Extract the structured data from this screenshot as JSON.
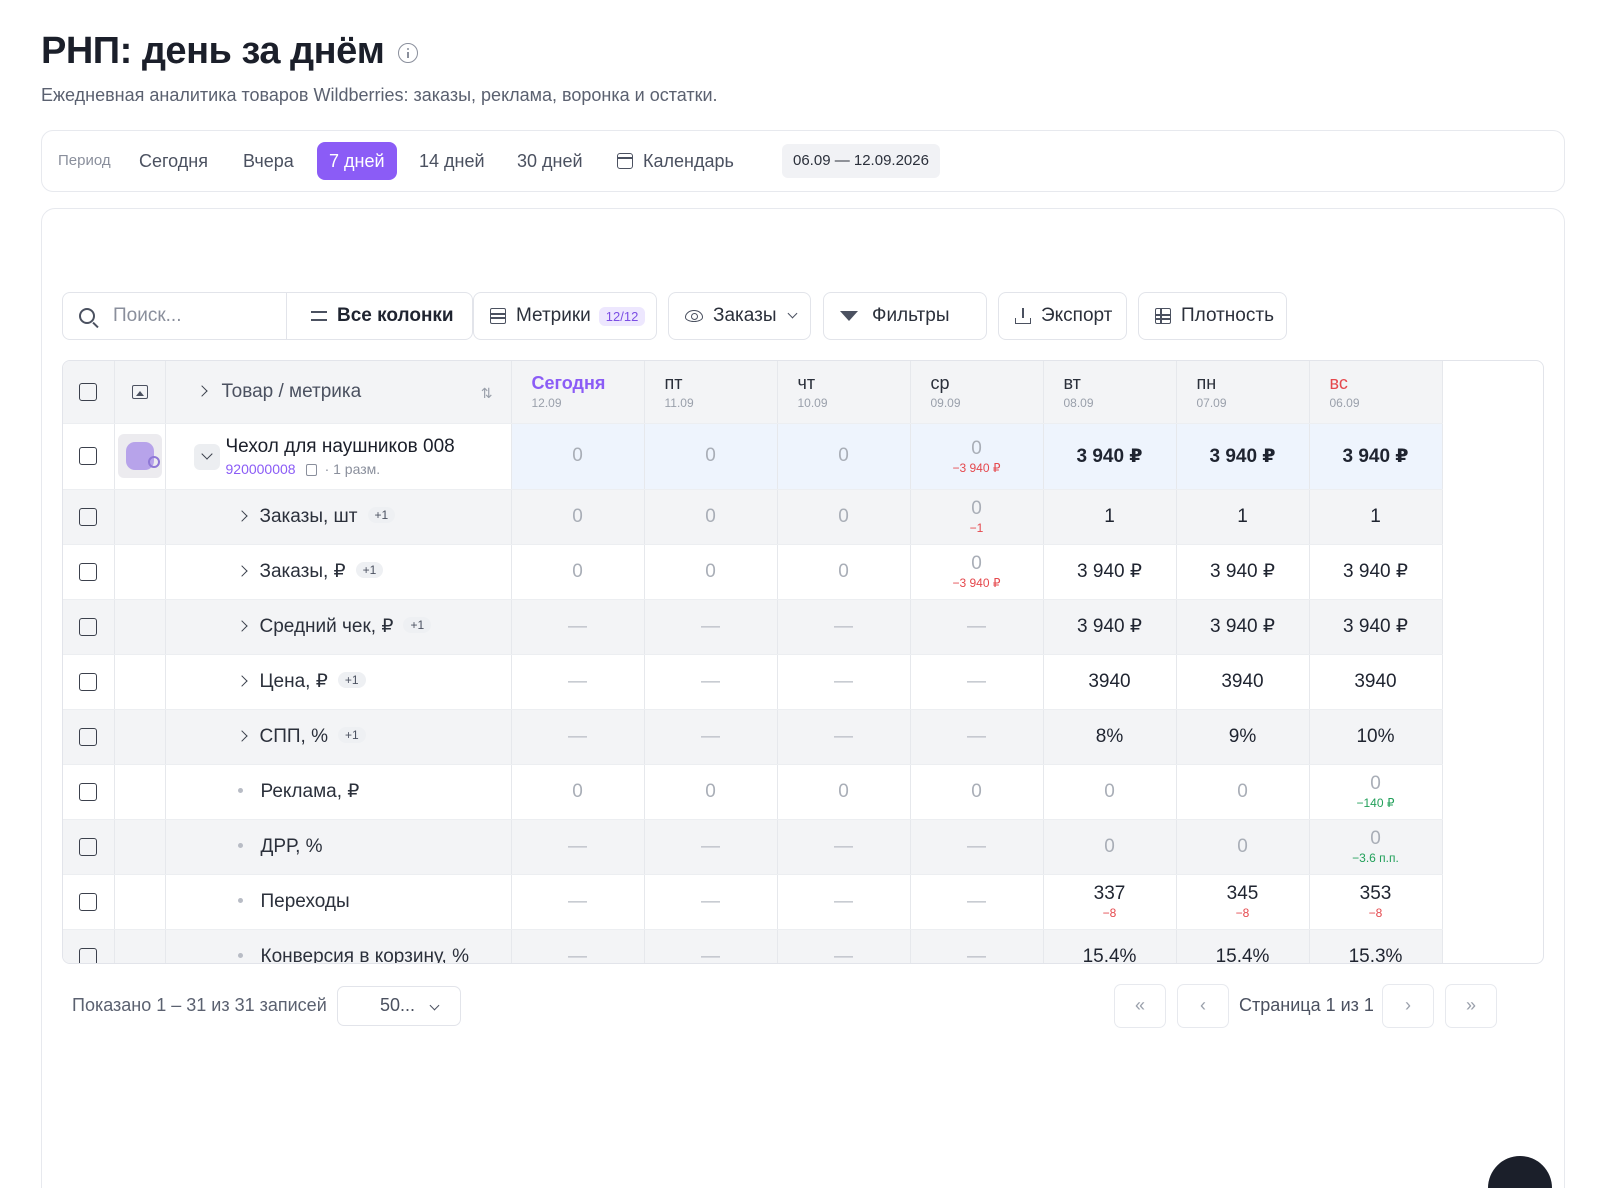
{
  "header": {
    "title": "РНП: день за днём",
    "subtitle": "Ежедневная аналитика товаров Wildberries: заказы, реклама, воронка и остатки."
  },
  "period": {
    "label": "Период",
    "options": [
      "Сегодня",
      "Вчера",
      "7 дней",
      "14 дней",
      "30 дней"
    ],
    "active": "7 дней",
    "calendar": "Календарь",
    "range": "06.09 — 12.09.2026"
  },
  "toolbar": {
    "search_placeholder": "Поиск...",
    "all_columns": "Все колонки",
    "metrics": "Метрики",
    "metrics_badge": "12/12",
    "orders": "Заказы",
    "filters": "Фильтры",
    "export": "Экспорт",
    "density": "Плотность"
  },
  "table": {
    "name_header": "Товар / метрика",
    "days": [
      {
        "day": "Сегодня",
        "date": "12.09"
      },
      {
        "day": "пт",
        "date": "11.09"
      },
      {
        "day": "чт",
        "date": "10.09"
      },
      {
        "day": "ср",
        "date": "09.09"
      },
      {
        "day": "вт",
        "date": "08.09"
      },
      {
        "day": "пн",
        "date": "07.09"
      },
      {
        "day": "вс",
        "date": "06.09"
      }
    ],
    "product": {
      "name": "Чехол для наушников 008",
      "sku": "920000008",
      "sizes": "· 1 разм.",
      "values": [
        "0",
        "0",
        "0",
        "0",
        "3 940 ₽",
        "3 940 ₽",
        "3 940 ₽"
      ],
      "deltas": [
        "",
        "",
        "",
        "−3 940 ₽",
        "",
        "",
        ""
      ]
    },
    "rows": [
      {
        "label": "Заказы, шт",
        "plus": "+1",
        "values": [
          "0",
          "0",
          "0",
          "0",
          "1",
          "1",
          "1"
        ],
        "deltas": [
          "",
          "",
          "",
          "−1",
          "",
          "",
          ""
        ]
      },
      {
        "label": "Заказы, ₽",
        "plus": "+1",
        "values": [
          "0",
          "0",
          "0",
          "0",
          "3 940 ₽",
          "3 940 ₽",
          "3 940 ₽"
        ],
        "deltas": [
          "",
          "",
          "",
          "−3 940 ₽",
          "",
          "",
          ""
        ]
      },
      {
        "label": "Средний чек, ₽",
        "plus": "+1",
        "values": [
          "—",
          "—",
          "—",
          "—",
          "3 940 ₽",
          "3 940 ₽",
          "3 940 ₽"
        ],
        "deltas": [
          "",
          "",
          "",
          "",
          "",
          "",
          ""
        ]
      },
      {
        "label": "Цена, ₽",
        "plus": "+1",
        "values": [
          "—",
          "—",
          "—",
          "—",
          "3940",
          "3940",
          "3940"
        ],
        "deltas": [
          "",
          "",
          "",
          "",
          "",
          "",
          ""
        ]
      },
      {
        "label": "СПП, %",
        "plus": "+1",
        "values": [
          "—",
          "—",
          "—",
          "—",
          "8%",
          "9%",
          "10%"
        ],
        "deltas": [
          "",
          "",
          "",
          "",
          "",
          "",
          ""
        ]
      },
      {
        "label": "Реклама, ₽",
        "plus": "",
        "values": [
          "0",
          "0",
          "0",
          "0",
          "0",
          "0",
          "0"
        ],
        "deltas": [
          "",
          "",
          "",
          "",
          "",
          "",
          "−140 ₽"
        ]
      },
      {
        "label": "ДРР, %",
        "plus": "",
        "values": [
          "—",
          "—",
          "—",
          "—",
          "0",
          "0",
          "0"
        ],
        "deltas": [
          "",
          "",
          "",
          "",
          "",
          "",
          "−3.6 п.п."
        ]
      },
      {
        "label": "Переходы",
        "plus": "",
        "values": [
          "—",
          "—",
          "—",
          "—",
          "337",
          "345",
          "353"
        ],
        "deltas": [
          "",
          "",
          "",
          "",
          "−8",
          "−8",
          "−8"
        ]
      },
      {
        "label": "Конверсия в корзину, %",
        "plus": "",
        "values": [
          "—",
          "—",
          "—",
          "—",
          "15.4%",
          "15.4%",
          "15.3%"
        ],
        "deltas": [
          "",
          "",
          "",
          "",
          "",
          "",
          ""
        ]
      }
    ]
  },
  "footer": {
    "shown": "Показано 1 – 31 из 31 записей",
    "page_size": "50...",
    "page_text": "Страница 1 из 1",
    "first": "«",
    "prev": "‹",
    "next": "›",
    "last": "»"
  }
}
